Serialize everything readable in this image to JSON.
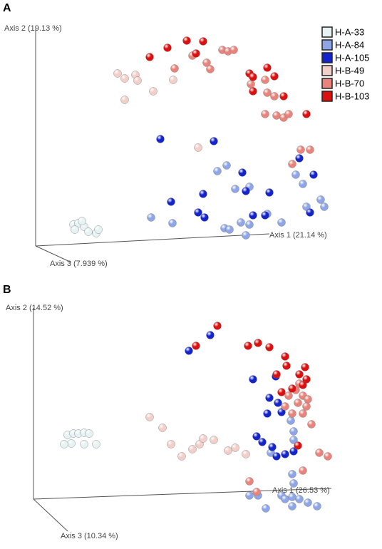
{
  "chart_data": [
    {
      "type": "scatter",
      "panel_label": "A",
      "x_axis_label": "Axis 1 (21.14 %)",
      "y_axis_label": "Axis 2 (19.13 %)",
      "z_axis_label": "Axis 3 (7.939 %)",
      "xlim": [
        0,
        536
      ],
      "ylim": [
        380,
        0
      ],
      "legend": true,
      "series": [
        {
          "name": "H-A-33",
          "color": "#e6f2f3",
          "x": [
            103,
            110,
            118,
            105,
            124,
            135,
            138,
            115
          ],
          "y": [
            315,
            313,
            318,
            322,
            325,
            327,
            322,
            310
          ]
        },
        {
          "name": "H-A-84",
          "color": "#8ea6e6",
          "x": [
            305,
            318,
            350,
            330,
            212,
            242,
            315,
            322,
            345,
            350,
            395,
            425,
            450,
            455,
            415,
            375,
            338,
            430
          ],
          "y": [
            240,
            232,
            262,
            265,
            305,
            313,
            320,
            322,
            330,
            315,
            312,
            258,
            280,
            290,
            245,
            300,
            312,
            290
          ]
        },
        {
          "name": "H-A-105",
          "color": "#1424cc",
          "x": [
            225,
            300,
            340,
            285,
            240,
            278,
            287,
            355,
            372,
            378,
            420,
            435,
            345,
            440
          ],
          "y": [
            195,
            198,
            242,
            272,
            283,
            298,
            305,
            302,
            302,
            270,
            222,
            298,
            268,
            245
          ]
        },
        {
          "name": "H-B-49",
          "color": "#f3cfca",
          "x": [
            165,
            175,
            190,
            193,
            215,
            175,
            278,
            243
          ],
          "y": [
            103,
            110,
            105,
            113,
            128,
            140,
            207,
            112
          ]
        },
        {
          "name": "H-B-70",
          "color": "#e8847c",
          "x": [
            270,
            290,
            295,
            312,
            320,
            328,
            352,
            372,
            375,
            385,
            372,
            388,
            398,
            405,
            422,
            435,
            410,
            245
          ],
          "y": [
            78,
            88,
            97,
            70,
            72,
            70,
            118,
            112,
            130,
            135,
            160,
            162,
            165,
            160,
            210,
            210,
            230,
            96
          ]
        },
        {
          "name": "H-B-103",
          "color": "#dd1010",
          "x": [
            210,
            235,
            262,
            275,
            285,
            350,
            375,
            385,
            355,
            398,
            430,
            355
          ],
          "y": [
            80,
            67,
            57,
            75,
            58,
            103,
            95,
            107,
            128,
            135,
            160,
            108
          ]
        }
      ]
    },
    {
      "type": "scatter",
      "panel_label": "B",
      "x_axis_label": "Axis 1 (26.53 %)",
      "y_axis_label": "Axis 2 (14.52 %)",
      "z_axis_label": "Axis 3 (10.34 %)",
      "xlim": [
        0,
        536
      ],
      "ylim": [
        375,
        0
      ],
      "legend": false,
      "series": [
        {
          "color": "#e6f2f3",
          "x": [
            95,
            103,
            110,
            118,
            125,
            100,
            118,
            135,
            90
          ],
          "y": [
            215,
            213,
            213,
            212,
            213,
            227,
            228,
            228,
            228
          ]
        },
        {
          "color": "#8ea6e6",
          "x": [
            408,
            412,
            412,
            380,
            410,
            412,
            350,
            362,
            395,
            400,
            410,
            420,
            432,
            445,
            373,
            410
          ],
          "y": [
            195,
            210,
            222,
            240,
            270,
            283,
            300,
            300,
            300,
            305,
            302,
            305,
            310,
            315,
            318,
            315
          ]
        },
        {
          "color": "#1424cc",
          "x": [
            265,
            295,
            355,
            378,
            390,
            375,
            395,
            360,
            368,
            382,
            400,
            412,
            388,
            387
          ],
          "y": [
            97,
            75,
            137,
            163,
            170,
            185,
            183,
            217,
            225,
            232,
            242,
            238,
            245,
            133
          ]
        },
        {
          "color": "#f3cfca",
          "x": [
            255,
            270,
            280,
            285,
            300,
            320,
            330,
            345,
            240,
            228,
            210
          ],
          "y": [
            245,
            235,
            228,
            220,
            222,
            237,
            233,
            242,
            228,
            205,
            190
          ]
        },
        {
          "color": "#e8847c",
          "x": [
            415,
            425,
            418,
            432,
            405,
            400,
            410,
            425,
            430,
            437,
            448,
            460,
            425,
            350,
            360,
            420
          ],
          "y": [
            152,
            160,
            170,
            165,
            160,
            175,
            185,
            185,
            175,
            200,
            240,
            245,
            265,
            280,
            295,
            143
          ]
        },
        {
          "color": "#dd1010",
          "x": [
            305,
            275,
            348,
            362,
            378,
            400,
            402,
            388,
            420,
            430,
            425,
            410,
            395,
            428,
            418
          ],
          "y": [
            62,
            90,
            90,
            86,
            92,
            105,
            118,
            130,
            130,
            137,
            145,
            150,
            155,
            120,
            230
          ]
        }
      ]
    }
  ]
}
